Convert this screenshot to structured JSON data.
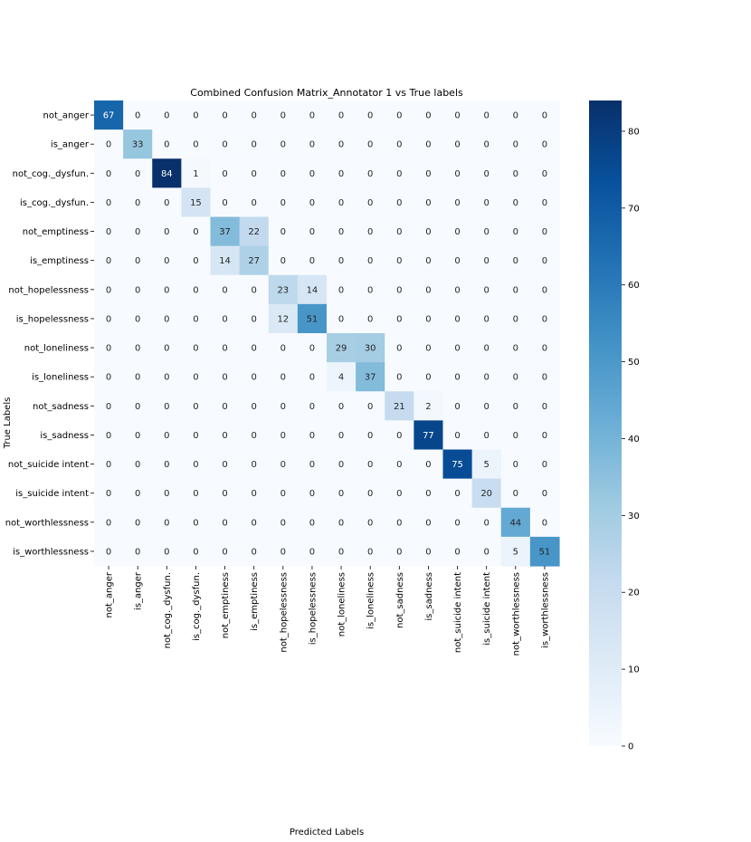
{
  "chart_data": {
    "type": "heatmap",
    "title": "Combined Confusion Matrix_Annotator 1 vs True labels",
    "xlabel": "Predicted Labels",
    "ylabel": "True Labels",
    "row_labels": [
      "not_anger",
      "is_anger",
      "not_cog._dysfun.",
      "is_cog._dysfun.",
      "not_emptiness",
      "is_emptiness",
      "not_hopelessness",
      "is_hopelessness",
      "not_loneliness",
      "is_loneliness",
      "not_sadness",
      "is_sadness",
      "not_suicide intent",
      "is_suicide intent",
      "not_worthlessness",
      "is_worthlessness"
    ],
    "col_labels": [
      "not_anger",
      "is_anger",
      "not_cog._dysfun.",
      "is_cog._dysfun.",
      "not_emptiness",
      "is_emptiness",
      "not_hopelessness",
      "is_hopelessness",
      "not_loneliness",
      "is_loneliness",
      "not_sadness",
      "is_sadness",
      "not_suicide intent",
      "is_suicide intent",
      "not_worthlessness",
      "is_worthlessness"
    ],
    "values": [
      [
        67,
        0,
        0,
        0,
        0,
        0,
        0,
        0,
        0,
        0,
        0,
        0,
        0,
        0,
        0,
        0
      ],
      [
        0,
        33,
        0,
        0,
        0,
        0,
        0,
        0,
        0,
        0,
        0,
        0,
        0,
        0,
        0,
        0
      ],
      [
        0,
        0,
        84,
        1,
        0,
        0,
        0,
        0,
        0,
        0,
        0,
        0,
        0,
        0,
        0,
        0
      ],
      [
        0,
        0,
        0,
        15,
        0,
        0,
        0,
        0,
        0,
        0,
        0,
        0,
        0,
        0,
        0,
        0
      ],
      [
        0,
        0,
        0,
        0,
        37,
        22,
        0,
        0,
        0,
        0,
        0,
        0,
        0,
        0,
        0,
        0
      ],
      [
        0,
        0,
        0,
        0,
        14,
        27,
        0,
        0,
        0,
        0,
        0,
        0,
        0,
        0,
        0,
        0
      ],
      [
        0,
        0,
        0,
        0,
        0,
        0,
        23,
        14,
        0,
        0,
        0,
        0,
        0,
        0,
        0,
        0
      ],
      [
        0,
        0,
        0,
        0,
        0,
        0,
        12,
        51,
        0,
        0,
        0,
        0,
        0,
        0,
        0,
        0
      ],
      [
        0,
        0,
        0,
        0,
        0,
        0,
        0,
        0,
        29,
        30,
        0,
        0,
        0,
        0,
        0,
        0
      ],
      [
        0,
        0,
        0,
        0,
        0,
        0,
        0,
        0,
        4,
        37,
        0,
        0,
        0,
        0,
        0,
        0
      ],
      [
        0,
        0,
        0,
        0,
        0,
        0,
        0,
        0,
        0,
        0,
        21,
        2,
        0,
        0,
        0,
        0
      ],
      [
        0,
        0,
        0,
        0,
        0,
        0,
        0,
        0,
        0,
        0,
        0,
        77,
        0,
        0,
        0,
        0
      ],
      [
        0,
        0,
        0,
        0,
        0,
        0,
        0,
        0,
        0,
        0,
        0,
        0,
        75,
        5,
        0,
        0
      ],
      [
        0,
        0,
        0,
        0,
        0,
        0,
        0,
        0,
        0,
        0,
        0,
        0,
        0,
        20,
        0,
        0
      ],
      [
        0,
        0,
        0,
        0,
        0,
        0,
        0,
        0,
        0,
        0,
        0,
        0,
        0,
        0,
        44,
        0
      ],
      [
        0,
        0,
        0,
        0,
        0,
        0,
        0,
        0,
        0,
        0,
        0,
        0,
        0,
        0,
        5,
        51
      ]
    ],
    "colormap": "Blues",
    "vmin": 0,
    "vmax": 84,
    "colorbar_ticks": [
      0,
      10,
      20,
      30,
      40,
      50,
      60,
      70,
      80
    ],
    "annotations": true
  }
}
